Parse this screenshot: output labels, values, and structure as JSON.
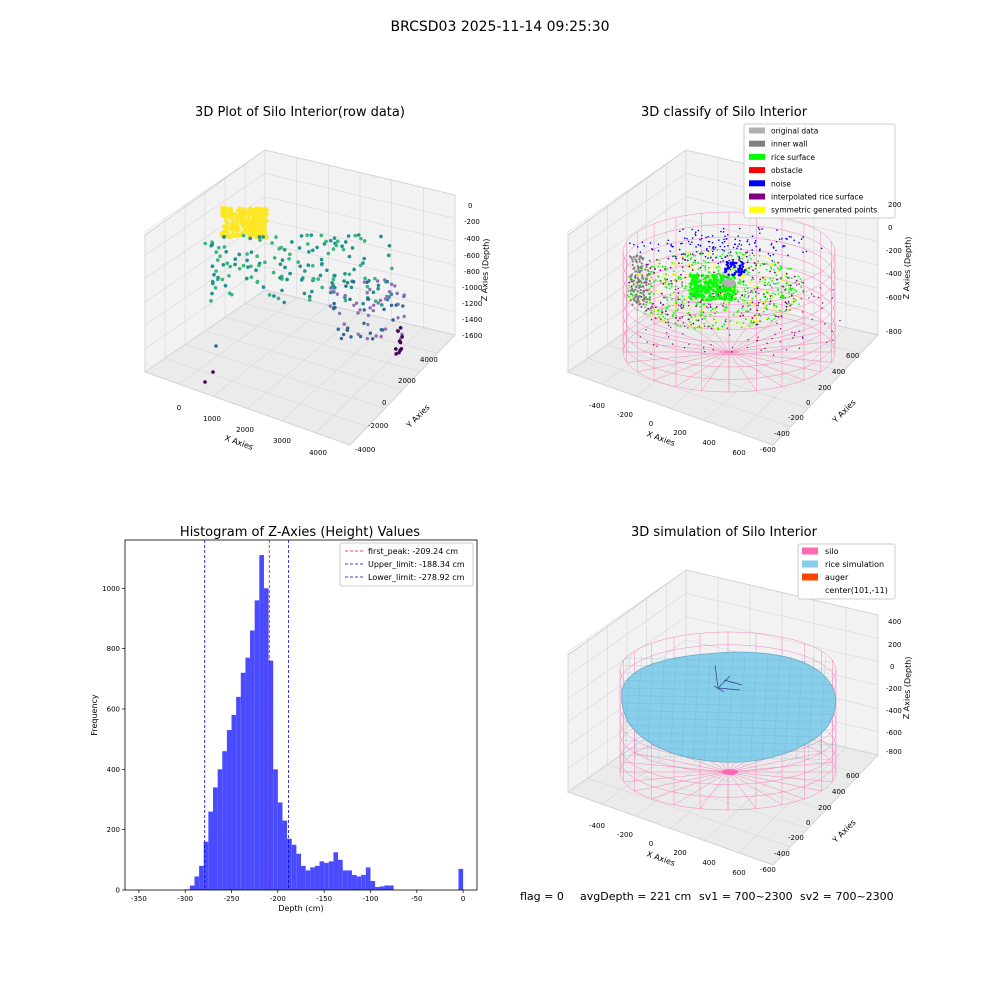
{
  "figure_title": "BRCSD03 2025-11-14 09:25:30",
  "status_line": {
    "flag": "flag = 0",
    "avg_depth": "avgDepth = 221 cm",
    "sv1": "sv1 = 700~2300",
    "sv2": "sv2 = 700~2300"
  },
  "colors": {
    "hist_bar": "#4a4aff",
    "first_peak": "#ff0000",
    "limits": "#0000cc",
    "silo": "#ff69b4",
    "rice_simulation": "#87ceeb",
    "auger": "#ff4500"
  },
  "chart_data": [
    {
      "type": "scatter",
      "title": "3D Plot of Silo Interior(row data)",
      "xlabel": "X Axies",
      "ylabel": "Y Axies",
      "zlabel": "Z Axies (Depth)",
      "x_ticks": [
        "0",
        "1000",
        "2000",
        "3000",
        "4000"
      ],
      "y_ticks": [
        "4000",
        "2000",
        "0",
        "-2000",
        "-4000"
      ],
      "z_ticks": [
        "0",
        "-200",
        "-400",
        "-600",
        "-800",
        "-1000",
        "-1200",
        "-1400",
        "-1600"
      ],
      "colormap": [
        "#440154",
        "#31688e",
        "#21918c",
        "#35b779",
        "#fde725"
      ]
    },
    {
      "type": "scatter",
      "title": "3D classify of Silo Interior",
      "xlabel": "X Axies",
      "ylabel": "Y Axies",
      "zlabel": "Z Axies (Depth)",
      "x_ticks": [
        "-400",
        "-200",
        "0",
        "200",
        "400",
        "600"
      ],
      "y_ticks": [
        "600",
        "400",
        "200",
        "0",
        "-200",
        "-400",
        "-600"
      ],
      "z_ticks": [
        "200",
        "0",
        "-200",
        "-400",
        "-600",
        "-800"
      ],
      "legend": [
        {
          "name": "original data",
          "color": "#b0b0b0"
        },
        {
          "name": "inner wall",
          "color": "#808080"
        },
        {
          "name": "rice surface",
          "color": "#00ff00"
        },
        {
          "name": "obstacle",
          "color": "#ff0000"
        },
        {
          "name": "noise",
          "color": "#0000ff"
        },
        {
          "name": "interpolated rice surface",
          "color": "#800080"
        },
        {
          "name": "symmetric generated points",
          "color": "#ffff00"
        }
      ],
      "legend_placement": "top-right"
    },
    {
      "type": "bar",
      "title": "Histogram of Z-Axies (Height) Values",
      "xlabel": "Depth (cm)",
      "ylabel": "Frequency",
      "xlim": [
        -365,
        15
      ],
      "ylim": [
        0,
        1160
      ],
      "x_ticks": [
        -350,
        -300,
        -250,
        -200,
        -150,
        -100,
        -50,
        0
      ],
      "y_ticks": [
        0,
        200,
        400,
        600,
        800,
        1000
      ],
      "bin_width": 5,
      "bins_start": [
        -300,
        -295,
        -290,
        -285,
        -280,
        -275,
        -270,
        -265,
        -260,
        -255,
        -250,
        -245,
        -240,
        -235,
        -230,
        -225,
        -220,
        -215,
        -210,
        -205,
        -200,
        -195,
        -190,
        -185,
        -180,
        -175,
        -170,
        -165,
        -160,
        -155,
        -150,
        -145,
        -140,
        -135,
        -130,
        -125,
        -120,
        -115,
        -110,
        -105,
        -100,
        -95,
        -90,
        -85,
        -80,
        -75,
        -70,
        -65,
        -60,
        -55,
        -50,
        -45,
        -40,
        -35,
        -30,
        -25,
        -20,
        -15,
        -10,
        -5,
        0
      ],
      "counts": [
        2,
        15,
        45,
        80,
        160,
        260,
        340,
        400,
        460,
        530,
        580,
        640,
        720,
        770,
        860,
        960,
        1110,
        1000,
        760,
        400,
        290,
        230,
        170,
        150,
        120,
        80,
        65,
        75,
        80,
        95,
        90,
        95,
        125,
        100,
        65,
        65,
        50,
        45,
        50,
        75,
        30,
        10,
        12,
        15,
        15,
        0,
        0,
        0,
        0,
        0,
        0,
        0,
        0,
        0,
        0,
        0,
        0,
        0,
        0,
        70,
        0
      ],
      "lines": [
        {
          "name": "first_peak: -209.24 cm",
          "x": -209.24,
          "color": "#ff0000"
        },
        {
          "name": "Upper_limit: -188.34 cm",
          "x": -188.34,
          "color": "#0000cc"
        },
        {
          "name": "Lower_limit: -278.92 cm",
          "x": -278.92,
          "color": "#0000cc"
        }
      ],
      "legend_placement": "top-right"
    },
    {
      "type": "area",
      "title": "3D simulation of Silo Interior",
      "xlabel": "X Axies",
      "ylabel": "Y Axies",
      "zlabel": "Z Axies (Depth)",
      "x_ticks": [
        "-400",
        "-200",
        "0",
        "200",
        "400",
        "600"
      ],
      "y_ticks": [
        "600",
        "400",
        "200",
        "0",
        "-200",
        "-400",
        "-600"
      ],
      "z_ticks": [
        "400",
        "200",
        "0",
        "-200",
        "-400",
        "-600",
        "-800"
      ],
      "legend": [
        {
          "name": "silo",
          "color": "#ff69b4"
        },
        {
          "name": "rice simulation",
          "color": "#87ceeb"
        },
        {
          "name": "auger",
          "color": "#ff4500"
        },
        {
          "name": "center(101,-11)",
          "color": ""
        }
      ],
      "legend_placement": "top-right"
    }
  ]
}
